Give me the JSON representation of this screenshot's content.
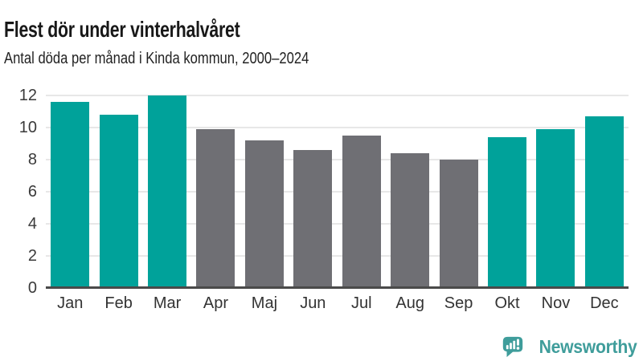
{
  "header": {
    "title": "Flest dör under vinterhalvåret",
    "subtitle": "Antal döda per månad i Kinda kommun, 2000–2024"
  },
  "chart_data": {
    "type": "bar",
    "title": "Flest dör under vinterhalvåret",
    "subtitle": "Antal döda per månad i Kinda kommun, 2000–2024",
    "categories": [
      "Jan",
      "Feb",
      "Mar",
      "Apr",
      "Maj",
      "Jun",
      "Jul",
      "Aug",
      "Sep",
      "Okt",
      "Nov",
      "Dec"
    ],
    "values": [
      11.6,
      10.8,
      12.0,
      9.9,
      9.2,
      8.6,
      9.5,
      8.4,
      8.0,
      9.4,
      9.9,
      10.7
    ],
    "bar_colors": [
      "#00a29a",
      "#00a29a",
      "#00a29a",
      "#6f6f74",
      "#6f6f74",
      "#6f6f74",
      "#6f6f74",
      "#6f6f74",
      "#6f6f74",
      "#00a29a",
      "#00a29a",
      "#00a29a"
    ],
    "highlight_color": "#00a29a",
    "muted_color": "#6f6f74",
    "xlabel": "",
    "ylabel": "",
    "ylim": [
      0,
      12
    ],
    "yticks": [
      0,
      2,
      4,
      6,
      8,
      10,
      12
    ],
    "grid": true,
    "legend": false
  },
  "footer": {
    "brand": "Newsworthy",
    "brand_color": "#3f9d9b"
  }
}
